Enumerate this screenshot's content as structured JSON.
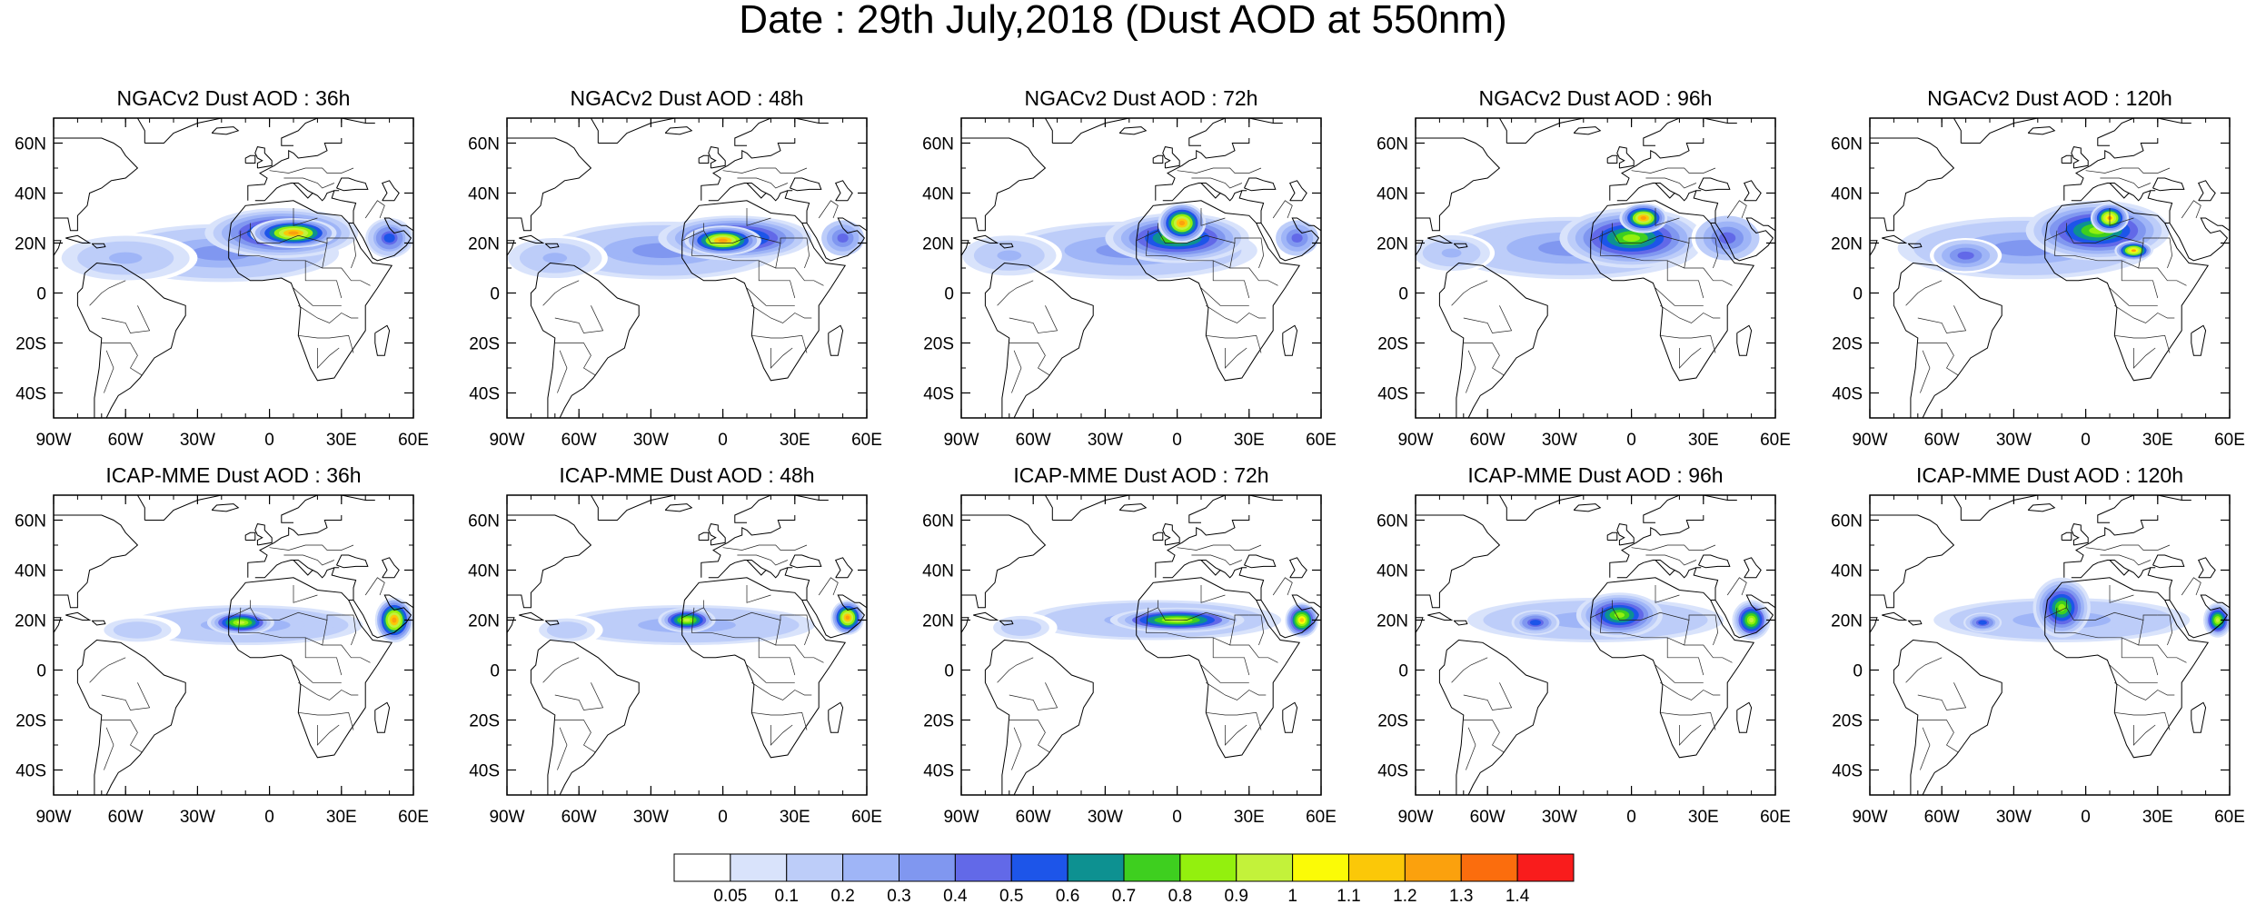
{
  "figure": {
    "title": "Date : 29th July,2018 (Dust AOD at 550nm)"
  },
  "axes": {
    "lon_ticks": [
      "90W",
      "60W",
      "30W",
      "0",
      "30E",
      "60E"
    ],
    "lat_ticks": [
      "60N",
      "40N",
      "20N",
      "0",
      "20S",
      "40S"
    ],
    "lon_values": [
      -90,
      -60,
      -30,
      0,
      30,
      60
    ],
    "lat_values": [
      60,
      40,
      20,
      0,
      -20,
      -40
    ],
    "lon_range": [
      -90,
      60
    ],
    "lat_range": [
      -50,
      70
    ]
  },
  "panels": [
    {
      "title": "NGACv2 Dust AOD : 36h",
      "model": "NGACv2",
      "lead": "36h",
      "plumes": [
        {
          "lon": -20,
          "lat": 16,
          "a": 55,
          "b": 13,
          "v": 0.35
        },
        {
          "lon": 5,
          "lat": 24,
          "a": 32,
          "b": 10,
          "v": 0.9
        },
        {
          "lon": 10,
          "lat": 24,
          "a": 18,
          "b": 6,
          "v": 1.35
        },
        {
          "lon": -60,
          "lat": 14,
          "a": 30,
          "b": 10,
          "v": 0.22
        },
        {
          "lon": 50,
          "lat": 22,
          "a": 10,
          "b": 8,
          "v": 0.6
        }
      ]
    },
    {
      "title": "NGACv2 Dust AOD : 48h",
      "model": "NGACv2",
      "lead": "48h",
      "plumes": [
        {
          "lon": -25,
          "lat": 17,
          "a": 55,
          "b": 13,
          "v": 0.35
        },
        {
          "lon": 5,
          "lat": 22,
          "a": 32,
          "b": 9,
          "v": 0.95
        },
        {
          "lon": 0,
          "lat": 21,
          "a": 16,
          "b": 6,
          "v": 1.35
        },
        {
          "lon": -70,
          "lat": 14,
          "a": 22,
          "b": 9,
          "v": 0.22
        },
        {
          "lon": 50,
          "lat": 22,
          "a": 10,
          "b": 8,
          "v": 0.5
        }
      ]
    },
    {
      "title": "NGACv2 Dust AOD : 72h",
      "model": "NGACv2",
      "lead": "72h",
      "plumes": [
        {
          "lon": -20,
          "lat": 17,
          "a": 60,
          "b": 13,
          "v": 0.35
        },
        {
          "lon": 0,
          "lat": 22,
          "a": 30,
          "b": 10,
          "v": 0.95
        },
        {
          "lon": 2,
          "lat": 28,
          "a": 10,
          "b": 8,
          "v": 1.35
        },
        {
          "lon": -70,
          "lat": 15,
          "a": 22,
          "b": 9,
          "v": 0.22
        },
        {
          "lon": 50,
          "lat": 22,
          "a": 10,
          "b": 8,
          "v": 0.5
        }
      ]
    },
    {
      "title": "NGACv2 Dust AOD : 96h",
      "model": "NGACv2",
      "lead": "96h",
      "plumes": [
        {
          "lon": -25,
          "lat": 18,
          "a": 60,
          "b": 14,
          "v": 0.35
        },
        {
          "lon": 0,
          "lat": 22,
          "a": 30,
          "b": 12,
          "v": 0.9
        },
        {
          "lon": 5,
          "lat": 30,
          "a": 10,
          "b": 6,
          "v": 1.35
        },
        {
          "lon": -75,
          "lat": 16,
          "a": 18,
          "b": 8,
          "v": 0.22
        },
        {
          "lon": 40,
          "lat": 22,
          "a": 15,
          "b": 10,
          "v": 0.5
        }
      ]
    },
    {
      "title": "NGACv2 Dust AOD : 120h",
      "model": "NGACv2",
      "lead": "120h",
      "plumes": [
        {
          "lon": -25,
          "lat": 18,
          "a": 60,
          "b": 14,
          "v": 0.35
        },
        {
          "lon": 5,
          "lat": 25,
          "a": 30,
          "b": 12,
          "v": 0.9
        },
        {
          "lon": 10,
          "lat": 30,
          "a": 8,
          "b": 6,
          "v": 1.3
        },
        {
          "lon": 20,
          "lat": 17,
          "a": 8,
          "b": 4,
          "v": 1.3
        },
        {
          "lon": -50,
          "lat": 15,
          "a": 15,
          "b": 7,
          "v": 0.5
        }
      ]
    },
    {
      "title": "ICAP-MME Dust AOD : 36h",
      "model": "ICAP-MME",
      "lead": "36h",
      "plumes": [
        {
          "lon": -10,
          "lat": 18,
          "a": 55,
          "b": 9,
          "v": 0.3
        },
        {
          "lon": -12,
          "lat": 19,
          "a": 14,
          "b": 5,
          "v": 1.0
        },
        {
          "lon": 52,
          "lat": 20,
          "a": 8,
          "b": 9,
          "v": 1.35
        },
        {
          "lon": -55,
          "lat": 16,
          "a": 18,
          "b": 6,
          "v": 0.18
        }
      ]
    },
    {
      "title": "ICAP-MME Dust AOD : 48h",
      "model": "ICAP-MME",
      "lead": "48h",
      "plumes": [
        {
          "lon": -15,
          "lat": 18,
          "a": 60,
          "b": 9,
          "v": 0.3
        },
        {
          "lon": -15,
          "lat": 20,
          "a": 12,
          "b": 5,
          "v": 1.0
        },
        {
          "lon": 52,
          "lat": 21,
          "a": 7,
          "b": 7,
          "v": 1.35
        },
        {
          "lon": -65,
          "lat": 16,
          "a": 15,
          "b": 6,
          "v": 0.18
        }
      ]
    },
    {
      "title": "ICAP-MME Dust AOD : 72h",
      "model": "ICAP-MME",
      "lead": "72h",
      "plumes": [
        {
          "lon": -10,
          "lat": 20,
          "a": 60,
          "b": 9,
          "v": 0.3
        },
        {
          "lon": 0,
          "lat": 20,
          "a": 28,
          "b": 5,
          "v": 1.0
        },
        {
          "lon": 52,
          "lat": 20,
          "a": 7,
          "b": 7,
          "v": 1.2
        },
        {
          "lon": -65,
          "lat": 17,
          "a": 15,
          "b": 6,
          "v": 0.18
        }
      ]
    },
    {
      "title": "ICAP-MME Dust AOD : 96h",
      "model": "ICAP-MME",
      "lead": "96h",
      "plumes": [
        {
          "lon": -15,
          "lat": 20,
          "a": 60,
          "b": 10,
          "v": 0.3
        },
        {
          "lon": -5,
          "lat": 22,
          "a": 18,
          "b": 9,
          "v": 0.9
        },
        {
          "lon": 50,
          "lat": 20,
          "a": 8,
          "b": 8,
          "v": 1.0
        },
        {
          "lon": -40,
          "lat": 19,
          "a": 10,
          "b": 5,
          "v": 0.6
        }
      ]
    },
    {
      "title": "ICAP-MME Dust AOD : 120h",
      "model": "ICAP-MME",
      "lead": "120h",
      "plumes": [
        {
          "lon": -10,
          "lat": 20,
          "a": 60,
          "b": 10,
          "v": 0.3
        },
        {
          "lon": -10,
          "lat": 25,
          "a": 12,
          "b": 12,
          "v": 0.9
        },
        {
          "lon": 55,
          "lat": 20,
          "a": 6,
          "b": 7,
          "v": 1.0
        },
        {
          "lon": -43,
          "lat": 19,
          "a": 8,
          "b": 4,
          "v": 0.6
        }
      ]
    }
  ],
  "colorbar": {
    "colors": [
      "#ffffff",
      "#d9e3fb",
      "#bdcdf9",
      "#9fb5f7",
      "#8097f0",
      "#6269e8",
      "#1d55e9",
      "#0d9191",
      "#3ecf1f",
      "#93f00e",
      "#c3f23a",
      "#fbfb06",
      "#fbc808",
      "#fba10d",
      "#fb6d0d",
      "#f91c1c"
    ],
    "labels": [
      "0.05",
      "0.1",
      "0.2",
      "0.3",
      "0.4",
      "0.5",
      "0.6",
      "0.7",
      "0.8",
      "0.9",
      "1",
      "1.1",
      "1.2",
      "1.3",
      "1.4"
    ],
    "thresholds": [
      0.05,
      0.1,
      0.2,
      0.3,
      0.4,
      0.5,
      0.6,
      0.7,
      0.8,
      0.9,
      1.0,
      1.1,
      1.2,
      1.3,
      1.4
    ]
  }
}
